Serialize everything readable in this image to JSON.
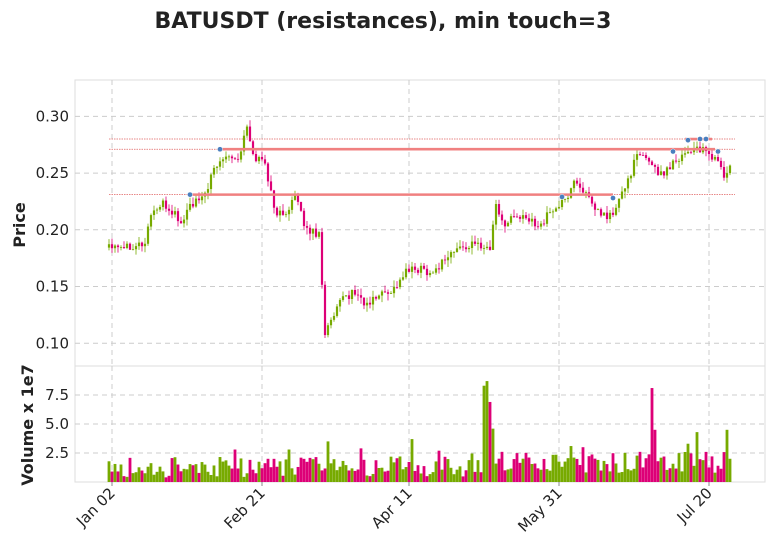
{
  "chart_data": {
    "type": "candlestick",
    "title": "BATUSDT (resistances), min touch=3",
    "price_panel": {
      "ylabel": "Price",
      "ylim": [
        0.08,
        0.332
      ],
      "yticks": [
        "0.10",
        "0.15",
        "0.20",
        "0.25",
        "0.30"
      ],
      "ytick_values": [
        0.1,
        0.15,
        0.2,
        0.25,
        0.3
      ]
    },
    "volume_panel": {
      "ylabel": "Volume x 1e7",
      "ylim": [
        0,
        10
      ],
      "yticks": [
        "2.5",
        "5.0",
        "7.5"
      ],
      "ytick_values": [
        2.5,
        5.0,
        7.5
      ]
    },
    "x": {
      "start": "2022-01-01",
      "days": 208,
      "ticks": [
        "Jan 02",
        "Feb 21",
        "Apr 11",
        "May 31",
        "Jul 20"
      ],
      "tick_days": [
        1,
        51,
        100,
        150,
        200
      ]
    },
    "grid": true,
    "colors": {
      "up": "#77aa00",
      "down": "#dd0077",
      "resistance": "#f08080",
      "touch_marker": "#4a7fbf",
      "grid": "#cccccc"
    },
    "resistances": [
      {
        "level": 0.231,
        "from_day": 27,
        "to_day": 168
      },
      {
        "level": 0.271,
        "from_day": 37,
        "to_day": 202
      },
      {
        "level": 0.28,
        "from_day": 192,
        "to_day": 201
      }
    ],
    "reference_lines": [
      0.231,
      0.271,
      0.28
    ],
    "touch_points": [
      {
        "day": 27,
        "price": 0.231
      },
      {
        "day": 37,
        "price": 0.271
      },
      {
        "day": 151,
        "price": 0.229
      },
      {
        "day": 168,
        "price": 0.228
      },
      {
        "day": 188,
        "price": 0.269
      },
      {
        "day": 193,
        "price": 0.279
      },
      {
        "day": 197,
        "price": 0.28
      },
      {
        "day": 199,
        "price": 0.28
      },
      {
        "day": 203,
        "price": 0.269
      }
    ],
    "price_keypoints": [
      [
        0,
        0.188
      ],
      [
        6,
        0.186
      ],
      [
        12,
        0.188
      ],
      [
        14,
        0.215
      ],
      [
        18,
        0.222
      ],
      [
        22,
        0.214
      ],
      [
        24,
        0.205
      ],
      [
        27,
        0.222
      ],
      [
        31,
        0.226
      ],
      [
        35,
        0.252
      ],
      [
        39,
        0.268
      ],
      [
        43,
        0.262
      ],
      [
        46,
        0.29
      ],
      [
        48,
        0.265
      ],
      [
        52,
        0.26
      ],
      [
        55,
        0.218
      ],
      [
        58,
        0.212
      ],
      [
        62,
        0.23
      ],
      [
        64,
        0.213
      ],
      [
        66,
        0.2
      ],
      [
        70,
        0.197
      ],
      [
        72,
        0.11
      ],
      [
        74,
        0.118
      ],
      [
        78,
        0.14
      ],
      [
        82,
        0.145
      ],
      [
        86,
        0.133
      ],
      [
        90,
        0.143
      ],
      [
        95,
        0.148
      ],
      [
        99,
        0.163
      ],
      [
        104,
        0.166
      ],
      [
        108,
        0.162
      ],
      [
        112,
        0.175
      ],
      [
        116,
        0.183
      ],
      [
        120,
        0.186
      ],
      [
        124,
        0.187
      ],
      [
        127,
        0.183
      ],
      [
        129,
        0.225
      ],
      [
        131,
        0.205
      ],
      [
        135,
        0.212
      ],
      [
        140,
        0.208
      ],
      [
        144,
        0.205
      ],
      [
        148,
        0.218
      ],
      [
        152,
        0.225
      ],
      [
        155,
        0.243
      ],
      [
        158,
        0.236
      ],
      [
        161,
        0.22
      ],
      [
        165,
        0.212
      ],
      [
        168,
        0.213
      ],
      [
        172,
        0.238
      ],
      [
        176,
        0.265
      ],
      [
        180,
        0.262
      ],
      [
        184,
        0.248
      ],
      [
        188,
        0.26
      ],
      [
        192,
        0.268
      ],
      [
        196,
        0.273
      ],
      [
        200,
        0.265
      ],
      [
        203,
        0.262
      ],
      [
        205,
        0.246
      ],
      [
        207,
        0.255
      ]
    ],
    "volume_spikes": [
      {
        "day": 42,
        "volume": 2.8
      },
      {
        "day": 60,
        "volume": 2.8
      },
      {
        "day": 73,
        "volume": 3.5
      },
      {
        "day": 84,
        "volume": 2.9
      },
      {
        "day": 101,
        "volume": 3.7
      },
      {
        "day": 110,
        "volume": 2.7
      },
      {
        "day": 125,
        "volume": 8.3
      },
      {
        "day": 126,
        "volume": 8.7
      },
      {
        "day": 127,
        "volume": 6.9
      },
      {
        "day": 128,
        "volume": 4.6
      },
      {
        "day": 131,
        "volume": 2.6
      },
      {
        "day": 154,
        "volume": 3.1
      },
      {
        "day": 158,
        "volume": 3.0
      },
      {
        "day": 177,
        "volume": 2.6
      },
      {
        "day": 181,
        "volume": 8.1
      },
      {
        "day": 182,
        "volume": 4.5
      },
      {
        "day": 193,
        "volume": 3.3
      },
      {
        "day": 196,
        "volume": 4.3
      },
      {
        "day": 206,
        "volume": 4.5
      }
    ]
  }
}
